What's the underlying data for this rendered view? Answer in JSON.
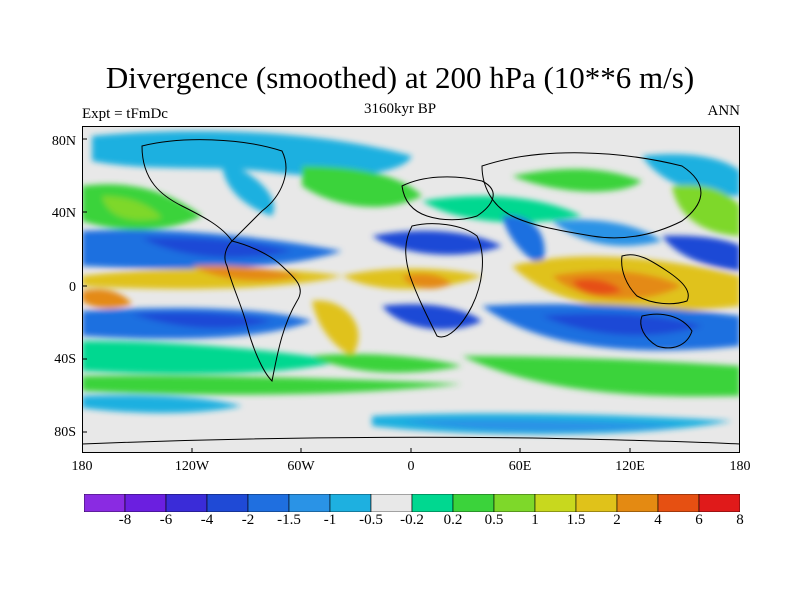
{
  "title": "Divergence (smoothed) at 200 hPa (10**6 m/s)",
  "experiment": "Expt = tFmDc",
  "period": "3160kyr BP",
  "season": "ANN",
  "lat_labels": [
    "80N",
    "40N",
    "0",
    "40S",
    "80S"
  ],
  "lon_labels": [
    "180",
    "120W",
    "60W",
    "0",
    "60E",
    "120E",
    "180"
  ],
  "colorbar": {
    "labels": [
      "-8",
      "-6",
      "-4",
      "-2",
      "-1.5",
      "-1",
      "-0.5",
      "-0.2",
      "0.2",
      "0.5",
      "1",
      "1.5",
      "2",
      "4",
      "6",
      "8"
    ],
    "colors": [
      "#8a2be2",
      "#6b1fe0",
      "#3a2cd8",
      "#1f4ad6",
      "#1f6fe0",
      "#2a93e6",
      "#1eb0e0",
      "#e8e8e8",
      "#00d890",
      "#3bd33b",
      "#7ed82a",
      "#c8d81e",
      "#e0c21a",
      "#e48a12",
      "#e65012",
      "#e01a1a"
    ]
  },
  "colors": {
    "land_outline": "#000000",
    "neutral": "#e8e8e8"
  }
}
